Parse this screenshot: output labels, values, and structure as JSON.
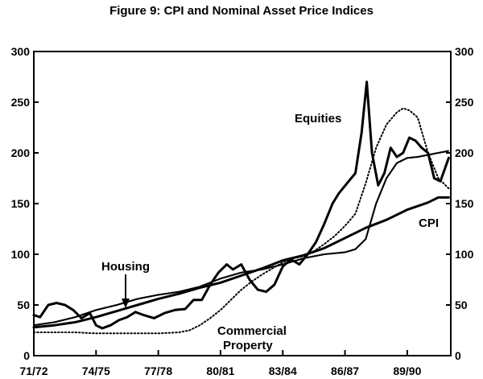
{
  "chart_data": {
    "type": "line",
    "title": "Figure 9: CPI and Nominal Asset Price Indices",
    "xlabel": "",
    "ylabel": "",
    "ylim": [
      0,
      300
    ],
    "xlim": [
      1971.5,
      1991.6
    ],
    "y_ticks": [
      0,
      50,
      100,
      150,
      200,
      250,
      300
    ],
    "y_tick_labels": [
      "0",
      "50",
      "100",
      "150",
      "200",
      "250",
      "300"
    ],
    "x_ticks": [
      1971.5,
      1974.5,
      1977.5,
      1980.5,
      1983.5,
      1986.5,
      1989.5
    ],
    "x_tick_labels": [
      "71/72",
      "74/75",
      "77/78",
      "80/81",
      "83/84",
      "86/87",
      "89/90"
    ],
    "grid": false,
    "legend": "none",
    "annotations": [
      {
        "text": "Equities",
        "series": "Equities"
      },
      {
        "text": "CPI",
        "series": "CPI"
      },
      {
        "text": "Housing",
        "series": "Housing"
      },
      {
        "text": "Commercial",
        "series": "Commercial Property"
      },
      {
        "text": "Property",
        "series": "Commercial Property"
      }
    ],
    "series": [
      {
        "name": "CPI",
        "style": "solid-thick",
        "x": [
          1971.5,
          1972.5,
          1973.5,
          1974.5,
          1975.5,
          1976.5,
          1977.5,
          1978.5,
          1979.5,
          1980.5,
          1981.5,
          1982.5,
          1983.5,
          1984.5,
          1985.5,
          1986.5,
          1987.5,
          1988.5,
          1989.5,
          1990.5,
          1991.0,
          1991.5
        ],
        "values": [
          28,
          30,
          33,
          38,
          44,
          50,
          56,
          61,
          67,
          72,
          79,
          86,
          94,
          99,
          106,
          116,
          126,
          134,
          144,
          151,
          156,
          156
        ]
      },
      {
        "name": "Equities",
        "style": "solid-thick",
        "x": [
          1971.5,
          1971.8,
          1972.2,
          1972.6,
          1973.0,
          1973.4,
          1973.8,
          1974.2,
          1974.5,
          1974.8,
          1975.2,
          1975.6,
          1976.0,
          1976.4,
          1976.8,
          1977.3,
          1977.8,
          1978.3,
          1978.8,
          1979.2,
          1979.6,
          1980.0,
          1980.4,
          1980.8,
          1981.1,
          1981.5,
          1981.9,
          1982.3,
          1982.7,
          1983.1,
          1983.5,
          1983.9,
          1984.3,
          1984.7,
          1985.1,
          1985.5,
          1985.9,
          1986.2,
          1986.6,
          1987.0,
          1987.3,
          1987.55,
          1987.8,
          1988.1,
          1988.4,
          1988.7,
          1989.0,
          1989.3,
          1989.6,
          1989.9,
          1990.2,
          1990.5,
          1990.8,
          1991.1,
          1991.5
        ],
        "values": [
          40,
          38,
          50,
          52,
          50,
          45,
          37,
          42,
          30,
          27,
          30,
          35,
          38,
          43,
          40,
          37,
          42,
          45,
          46,
          55,
          55,
          70,
          82,
          90,
          85,
          90,
          75,
          65,
          63,
          70,
          88,
          95,
          90,
          100,
          112,
          130,
          150,
          160,
          170,
          180,
          220,
          270,
          200,
          168,
          180,
          205,
          196,
          200,
          215,
          212,
          205,
          200,
          175,
          172,
          195
        ]
      },
      {
        "name": "Housing",
        "style": "dense-dotted",
        "x": [
          1971.5,
          1972.5,
          1973.5,
          1974.5,
          1975.5,
          1976.5,
          1977.5,
          1978.5,
          1979.5,
          1980.5,
          1981.5,
          1982.5,
          1983.5,
          1984.5,
          1985.5,
          1986.5,
          1987.0,
          1987.5,
          1988.0,
          1988.5,
          1989.0,
          1989.5,
          1990.0,
          1990.5,
          1991.0,
          1991.5
        ],
        "values": [
          30,
          33,
          38,
          45,
          50,
          56,
          60,
          63,
          68,
          76,
          82,
          85,
          90,
          96,
          100,
          102,
          105,
          115,
          150,
          175,
          190,
          195,
          196,
          198,
          200,
          202
        ]
      },
      {
        "name": "Commercial Property",
        "style": "sparse-dotted",
        "x": [
          1971.5,
          1972.5,
          1973.5,
          1974.5,
          1975.5,
          1976.5,
          1977.5,
          1978.5,
          1979.0,
          1979.5,
          1980.0,
          1980.5,
          1981.0,
          1981.5,
          1982.0,
          1982.5,
          1983.0,
          1983.5,
          1984.0,
          1984.5,
          1985.0,
          1985.5,
          1986.0,
          1986.5,
          1987.0,
          1987.5,
          1988.0,
          1988.5,
          1989.0,
          1989.3,
          1989.6,
          1990.0,
          1990.5,
          1991.0,
          1991.5
        ],
        "values": [
          23,
          23,
          23,
          22,
          22,
          22,
          22,
          23,
          25,
          30,
          37,
          45,
          55,
          65,
          73,
          80,
          86,
          92,
          96,
          98,
          103,
          110,
          118,
          128,
          140,
          170,
          205,
          228,
          240,
          244,
          242,
          235,
          200,
          175,
          165
        ]
      }
    ]
  }
}
